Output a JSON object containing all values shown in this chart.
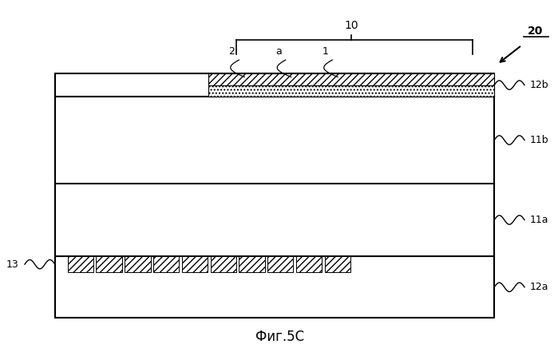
{
  "fig_width": 6.99,
  "fig_height": 4.46,
  "dpi": 100,
  "bg_color": "#ffffff",
  "title": "Фиг.5C",
  "label_12b": "12b",
  "label_11b": "11b",
  "label_11a": "11a",
  "label_12a": "12a",
  "label_13": "13",
  "label_20": "20",
  "label_10": "10",
  "label_2": "2",
  "label_a": "a",
  "label_1": "1"
}
